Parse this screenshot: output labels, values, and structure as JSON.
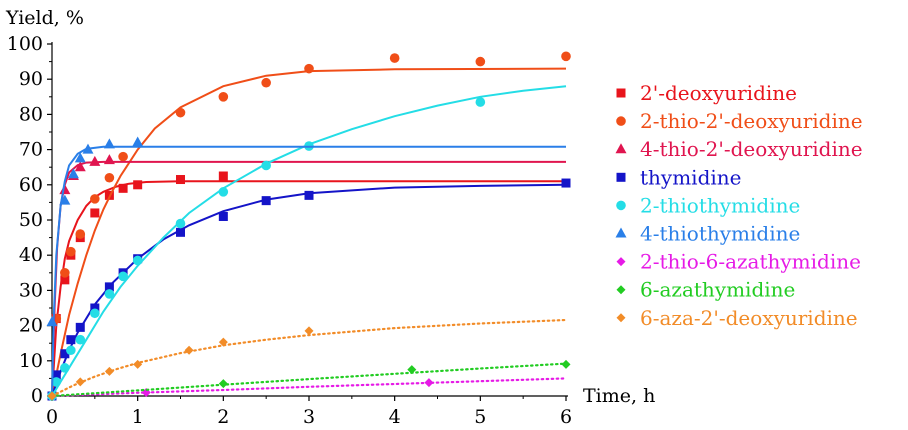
{
  "chart_data": {
    "type": "scatter",
    "title": "",
    "ylabel": "Yield, %",
    "xlabel": "Time, h",
    "xlim": [
      0,
      6
    ],
    "ylim": [
      0,
      100
    ],
    "xticks": [
      "0",
      "1",
      "2",
      "3",
      "4",
      "5",
      "6"
    ],
    "yticks": [
      "0",
      "10",
      "20",
      "30",
      "40",
      "50",
      "60",
      "70",
      "80",
      "90",
      "100"
    ],
    "grid": false,
    "legend_position": "right",
    "series": [
      {
        "name": "2'-deoxyuridine",
        "color": "#e8141c",
        "marker": "square",
        "fit": "solid",
        "points": [
          [
            0,
            0
          ],
          [
            0.05,
            22
          ],
          [
            0.15,
            33
          ],
          [
            0.22,
            40
          ],
          [
            0.33,
            45
          ],
          [
            0.5,
            52
          ],
          [
            0.67,
            57
          ],
          [
            0.83,
            59
          ],
          [
            1.0,
            60
          ],
          [
            1.5,
            61.5
          ],
          [
            2.0,
            62.5
          ]
        ],
        "curve": [
          [
            0,
            0
          ],
          [
            0.05,
            20
          ],
          [
            0.1,
            31
          ],
          [
            0.15,
            39
          ],
          [
            0.2,
            44
          ],
          [
            0.3,
            50
          ],
          [
            0.4,
            54
          ],
          [
            0.5,
            56.5
          ],
          [
            0.6,
            58
          ],
          [
            0.75,
            59.5
          ],
          [
            0.9,
            60.3
          ],
          [
            1.1,
            60.8
          ],
          [
            1.5,
            61
          ],
          [
            2,
            61
          ],
          [
            6,
            61
          ]
        ]
      },
      {
        "name": "2-thio-2'-deoxyuridine",
        "color": "#f04e18",
        "marker": "circle",
        "fit": "solid",
        "points": [
          [
            0,
            0
          ],
          [
            0.05,
            22
          ],
          [
            0.15,
            35
          ],
          [
            0.22,
            41
          ],
          [
            0.33,
            46
          ],
          [
            0.5,
            56
          ],
          [
            0.67,
            62
          ],
          [
            0.83,
            68
          ],
          [
            1.5,
            80.5
          ],
          [
            2.0,
            85
          ],
          [
            2.5,
            89
          ],
          [
            3.0,
            93
          ],
          [
            4.0,
            96
          ],
          [
            5.0,
            95
          ],
          [
            6.0,
            96.5
          ]
        ],
        "curve": [
          [
            0,
            0
          ],
          [
            0.1,
            12
          ],
          [
            0.2,
            23
          ],
          [
            0.3,
            32
          ],
          [
            0.4,
            40
          ],
          [
            0.5,
            47
          ],
          [
            0.6,
            53
          ],
          [
            0.7,
            58
          ],
          [
            0.8,
            62.5
          ],
          [
            1.0,
            70
          ],
          [
            1.2,
            76
          ],
          [
            1.5,
            82
          ],
          [
            2.0,
            88
          ],
          [
            2.5,
            91
          ],
          [
            3.0,
            92.3
          ],
          [
            4.0,
            92.8
          ],
          [
            6.0,
            93
          ]
        ]
      },
      {
        "name": "4-thio-2'-deoxyuridine",
        "color": "#e0154f",
        "marker": "triangle",
        "fit": "solid",
        "points": [
          [
            0.15,
            58.5
          ],
          [
            0.25,
            62.5
          ],
          [
            0.33,
            65
          ],
          [
            0.5,
            66.5
          ],
          [
            0.67,
            67
          ]
        ],
        "curve": [
          [
            0,
            0
          ],
          [
            0.03,
            25
          ],
          [
            0.06,
            42
          ],
          [
            0.1,
            54
          ],
          [
            0.15,
            60
          ],
          [
            0.2,
            63.5
          ],
          [
            0.3,
            65.6
          ],
          [
            0.4,
            66.3
          ],
          [
            0.6,
            66.5
          ],
          [
            6,
            66.5
          ]
        ]
      },
      {
        "name": "thymidine",
        "color": "#1414c8",
        "marker": "square",
        "fit": "solid",
        "points": [
          [
            0,
            0
          ],
          [
            0.05,
            6
          ],
          [
            0.15,
            12
          ],
          [
            0.22,
            16
          ],
          [
            0.33,
            19.5
          ],
          [
            0.5,
            25
          ],
          [
            0.67,
            31
          ],
          [
            0.83,
            35
          ],
          [
            1.0,
            39
          ],
          [
            1.5,
            46.5
          ],
          [
            2.0,
            51
          ],
          [
            2.5,
            55.5
          ],
          [
            3.0,
            57
          ],
          [
            6.0,
            60.5
          ]
        ],
        "curve": [
          [
            0,
            0
          ],
          [
            0.1,
            7
          ],
          [
            0.2,
            13
          ],
          [
            0.3,
            18
          ],
          [
            0.5,
            26
          ],
          [
            0.7,
            32
          ],
          [
            1.0,
            39
          ],
          [
            1.3,
            44.5
          ],
          [
            1.6,
            48.5
          ],
          [
            2.0,
            52.5
          ],
          [
            2.5,
            55.8
          ],
          [
            3.0,
            57.6
          ],
          [
            4.0,
            59.2
          ],
          [
            5.0,
            59.7
          ],
          [
            6.0,
            60
          ]
        ]
      },
      {
        "name": "2-thiothymidine",
        "color": "#24dde6",
        "marker": "circle",
        "fit": "solid",
        "points": [
          [
            0,
            0
          ],
          [
            0.05,
            4
          ],
          [
            0.15,
            8
          ],
          [
            0.22,
            13
          ],
          [
            0.33,
            16
          ],
          [
            0.5,
            23.5
          ],
          [
            0.67,
            29
          ],
          [
            0.83,
            34
          ],
          [
            1.0,
            38.5
          ],
          [
            1.5,
            49
          ],
          [
            2.0,
            58
          ],
          [
            2.5,
            65.5
          ],
          [
            3.0,
            71
          ],
          [
            5.0,
            83.5
          ]
        ],
        "curve": [
          [
            0,
            0
          ],
          [
            0.2,
            8
          ],
          [
            0.4,
            16
          ],
          [
            0.6,
            24
          ],
          [
            0.8,
            31
          ],
          [
            1.0,
            37
          ],
          [
            1.3,
            45
          ],
          [
            1.6,
            52
          ],
          [
            2.0,
            59
          ],
          [
            2.5,
            66
          ],
          [
            3.0,
            71.5
          ],
          [
            3.5,
            75.8
          ],
          [
            4.0,
            79.5
          ],
          [
            4.5,
            82.5
          ],
          [
            5.0,
            85
          ],
          [
            5.5,
            86.7
          ],
          [
            6.0,
            88
          ]
        ]
      },
      {
        "name": "4-thiothymidine",
        "color": "#2a7fe8",
        "marker": "triangle",
        "fit": "solid",
        "points": [
          [
            0,
            21
          ],
          [
            0.15,
            55.5
          ],
          [
            0.25,
            63
          ],
          [
            0.33,
            67.5
          ],
          [
            0.42,
            70
          ],
          [
            0.67,
            71.5
          ],
          [
            1.0,
            72
          ]
        ],
        "curve": [
          [
            0,
            0
          ],
          [
            0.02,
            22
          ],
          [
            0.05,
            40
          ],
          [
            0.1,
            54
          ],
          [
            0.15,
            61
          ],
          [
            0.2,
            65.5
          ],
          [
            0.3,
            68.8
          ],
          [
            0.4,
            70.2
          ],
          [
            0.6,
            70.8
          ],
          [
            6,
            70.8
          ]
        ]
      },
      {
        "name": "2-thio-6-azathymidine",
        "color": "#e61ae6",
        "marker": "diamond",
        "fit": "dotted",
        "points": [
          [
            0,
            0
          ],
          [
            1.1,
            1
          ],
          [
            4.4,
            3.8
          ]
        ],
        "curve": [
          [
            0,
            0
          ],
          [
            1,
            0.9
          ],
          [
            2,
            1.7
          ],
          [
            3,
            2.6
          ],
          [
            4,
            3.4
          ],
          [
            5,
            4.2
          ],
          [
            6,
            5
          ]
        ]
      },
      {
        "name": "6-azathymidine",
        "color": "#22cc22",
        "marker": "diamond",
        "fit": "dotted",
        "points": [
          [
            0,
            0
          ],
          [
            2.0,
            3.5
          ],
          [
            4.2,
            7.5
          ],
          [
            6.0,
            9
          ]
        ],
        "curve": [
          [
            0,
            0
          ],
          [
            1,
            1.6
          ],
          [
            2,
            3.2
          ],
          [
            3,
            4.8
          ],
          [
            4,
            6.3
          ],
          [
            5,
            7.8
          ],
          [
            6,
            9.2
          ]
        ]
      },
      {
        "name": "6-aza-2'-deoxyuridine",
        "color": "#f28c28",
        "marker": "diamond",
        "fit": "dotted",
        "points": [
          [
            0,
            0
          ],
          [
            0.33,
            4
          ],
          [
            0.67,
            7
          ],
          [
            1.0,
            9
          ],
          [
            1.6,
            13
          ],
          [
            2.0,
            15.3
          ],
          [
            3.0,
            18.5
          ]
        ],
        "curve": [
          [
            0,
            0
          ],
          [
            0.25,
            3
          ],
          [
            0.5,
            5.5
          ],
          [
            0.75,
            7.6
          ],
          [
            1.0,
            9.4
          ],
          [
            1.5,
            12.2
          ],
          [
            2.0,
            14.4
          ],
          [
            2.5,
            16
          ],
          [
            3.0,
            17.3
          ],
          [
            4.0,
            19.3
          ],
          [
            5.0,
            20.6
          ],
          [
            6.0,
            21.6
          ]
        ]
      }
    ]
  }
}
